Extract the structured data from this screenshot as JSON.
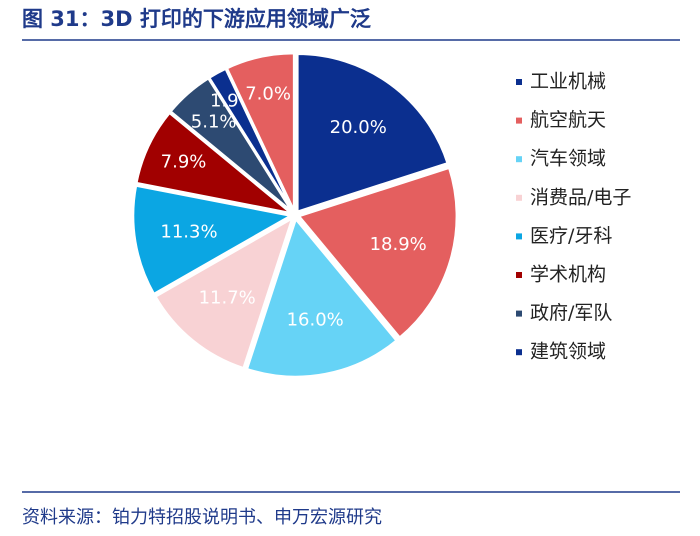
{
  "chart_data": {
    "type": "pie",
    "title": "图 31：3D 打印的下游应用领域广泛",
    "source": "资料来源：铂力特招股说明书、申万宏源研究",
    "categories": [
      "工业机械",
      "航空航天",
      "汽车领域",
      "消费品/电子",
      "医疗/牙科",
      "学术机构",
      "政府/军队",
      "建筑领域",
      null
    ],
    "values": [
      20.0,
      18.9,
      16.0,
      11.7,
      11.3,
      7.9,
      5.1,
      1.9,
      7.0
    ],
    "value_labels": [
      "20.0%",
      "18.9%",
      "16.0%",
      "11.7%",
      "11.3%",
      "7.9%",
      "5.1%",
      "1.9%",
      "7.0%"
    ],
    "colors": [
      "#0b2f8f",
      "#e45f5f",
      "#66d3f6",
      "#f8d2d4",
      "#0ba6e3",
      "#a10000",
      "#2d4a72",
      "#0b2f8f",
      "#e45f5f"
    ],
    "legend": "right"
  }
}
